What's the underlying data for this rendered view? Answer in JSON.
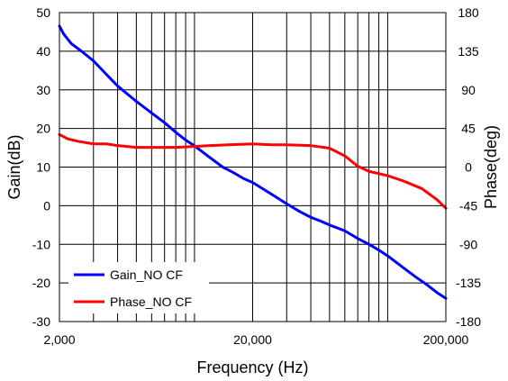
{
  "chart_data": {
    "type": "line",
    "xscale": "log",
    "xlabel": "Frequency (Hz)",
    "ylabel_left": "Gain(dB)",
    "ylabel_right": "Phase(deg)",
    "xlim": [
      2000,
      200000
    ],
    "ylim_left": [
      -30,
      50
    ],
    "ylim_right": [
      -180,
      180
    ],
    "grid": true,
    "legend_placement": "bottom-left",
    "x_tick_labels": [
      {
        "value": 2000,
        "label": "2,000"
      },
      {
        "value": 20000,
        "label": "20,000"
      },
      {
        "value": 200000,
        "label": "200,000"
      }
    ],
    "y_left_ticks": [
      "-30",
      "-20",
      "-10",
      "0",
      "10",
      "20",
      "30",
      "40",
      "50"
    ],
    "y_right_ticks": [
      "-180",
      "-135",
      "-90",
      "-45",
      "0",
      "45",
      "90",
      "135",
      "180"
    ],
    "series": [
      {
        "name": "Gain_NO CF",
        "axis": "left",
        "color": "#0000ff",
        "x": [
          2000,
          2100,
          2300,
          2600,
          3000,
          3500,
          4000,
          5000,
          6000,
          7000,
          8000,
          9000,
          10000,
          12000,
          14000,
          16000,
          18000,
          20000,
          25000,
          30000,
          35000,
          40000,
          45000,
          50000,
          60000,
          70000,
          80000,
          90000,
          100000,
          120000,
          140000,
          160000,
          180000,
          200000
        ],
        "y": [
          46.5,
          44.5,
          42,
          40,
          37.5,
          34,
          31,
          27,
          24,
          21.5,
          19,
          17,
          15.5,
          12.5,
          10,
          8.5,
          7,
          6,
          3,
          0.5,
          -1.5,
          -3,
          -4,
          -5,
          -6.5,
          -8.5,
          -10,
          -11.5,
          -13,
          -16,
          -18.5,
          -20.5,
          -22.5,
          -24
        ]
      },
      {
        "name": "Phase_NO CF",
        "axis": "right",
        "color": "#ff0000",
        "x": [
          2000,
          2200,
          2500,
          3000,
          3500,
          4000,
          5000,
          6000,
          7000,
          8000,
          10000,
          12000,
          15000,
          20000,
          25000,
          30000,
          40000,
          50000,
          60000,
          70000,
          80000,
          100000,
          120000,
          150000,
          180000,
          200000
        ],
        "y": [
          38,
          33,
          30,
          27,
          27,
          25,
          23,
          23,
          23,
          23,
          24,
          25,
          26,
          27,
          26,
          26,
          25,
          22,
          13,
          1,
          -5,
          -10,
          -16,
          -25,
          -38,
          -48
        ]
      }
    ]
  }
}
